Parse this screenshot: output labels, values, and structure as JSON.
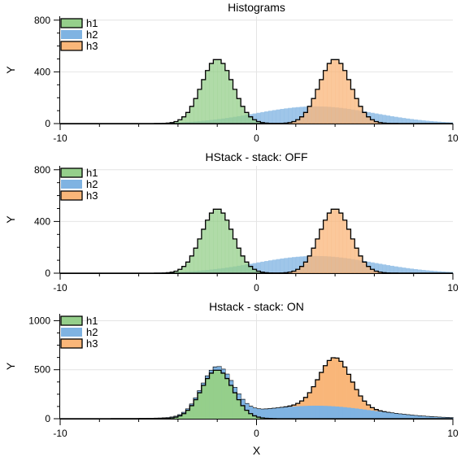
{
  "chart_data": [
    {
      "type": "histogram",
      "title": "Histograms",
      "xlabel": "",
      "ylabel": "Y",
      "xlim": [
        -10,
        10
      ],
      "ylim": [
        0,
        830
      ],
      "xticks": [
        "-10",
        "0",
        "10"
      ],
      "yticks": [
        {
          "v": 0,
          "label": "0"
        },
        {
          "v": 400,
          "label": "400"
        },
        {
          "v": 800,
          "label": "800"
        }
      ],
      "grid": true,
      "legend": "top-left",
      "stacked": false,
      "series": [
        {
          "name": "h1",
          "color": "#95cf8b",
          "outline": true,
          "mean": -2,
          "sigma": 0.8,
          "total": 5000
        },
        {
          "name": "h2",
          "color": "#7fb3e2",
          "outline": false,
          "mean": 3,
          "sigma": 3,
          "total": 5000
        },
        {
          "name": "h3",
          "color": "#f9b679",
          "outline": true,
          "mean": 4,
          "sigma": 0.8,
          "total": 5000
        }
      ]
    },
    {
      "type": "histogram",
      "title": "HStack - stack: OFF",
      "xlabel": "",
      "ylabel": "Y",
      "xlim": [
        -10,
        10
      ],
      "ylim": [
        0,
        830
      ],
      "xticks": [
        "-10",
        "0",
        "10"
      ],
      "yticks": [
        {
          "v": 0,
          "label": "0"
        },
        {
          "v": 400,
          "label": "400"
        },
        {
          "v": 800,
          "label": "800"
        }
      ],
      "grid": true,
      "legend": "top-left",
      "stacked": false,
      "series": [
        {
          "name": "h1",
          "color": "#95cf8b",
          "outline": true,
          "mean": -2,
          "sigma": 0.8,
          "total": 5000
        },
        {
          "name": "h2",
          "color": "#7fb3e2",
          "outline": false,
          "mean": 3,
          "sigma": 3,
          "total": 5000
        },
        {
          "name": "h3",
          "color": "#f9b679",
          "outline": true,
          "mean": 4,
          "sigma": 0.8,
          "total": 5000
        }
      ]
    },
    {
      "type": "histogram",
      "title": "Hstack - stack: ON",
      "xlabel": "X",
      "ylabel": "Y",
      "xlim": [
        -10,
        10
      ],
      "ylim": [
        0,
        1070
      ],
      "xticks": [
        "-10",
        "0",
        "10"
      ],
      "yticks": [
        {
          "v": 0,
          "label": "0"
        },
        {
          "v": 500,
          "label": "500"
        },
        {
          "v": 1000,
          "label": "1000"
        }
      ],
      "grid": true,
      "legend": "top-left",
      "stacked": true,
      "series": [
        {
          "name": "h1",
          "color": "#95cf8b",
          "outline": true,
          "mean": -2,
          "sigma": 0.8,
          "total": 5000
        },
        {
          "name": "h2",
          "color": "#7fb3e2",
          "outline": false,
          "mean": 3,
          "sigma": 3,
          "total": 5000
        },
        {
          "name": "h3",
          "color": "#f9b679",
          "outline": true,
          "mean": 4,
          "sigma": 0.8,
          "total": 5000
        }
      ]
    }
  ]
}
